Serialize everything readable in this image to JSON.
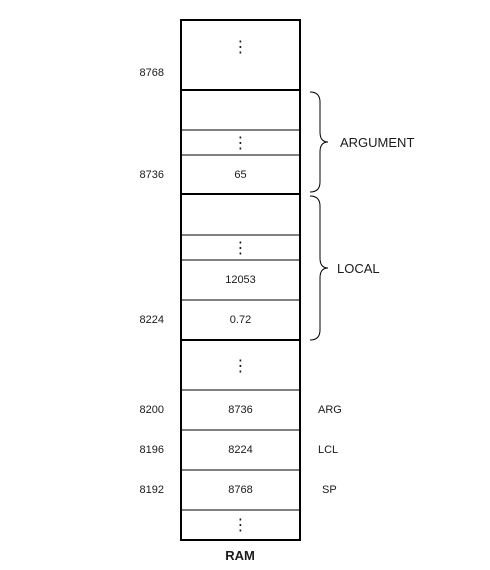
{
  "diagram": {
    "title": "RAM",
    "ellipsis": "⋮",
    "cells": {
      "local_first": "0.72",
      "local_second": "12053",
      "argument_first": "65",
      "arg_value": "8736",
      "lcl_value": "8224",
      "sp_value": "8768"
    },
    "addresses": {
      "a8768": "8768",
      "a8736": "8736",
      "a8224": "8224",
      "a8200": "8200",
      "a8196": "8196",
      "a8192": "8192"
    },
    "registers": {
      "arg": "ARG",
      "lcl": "LCL",
      "sp": "SP"
    },
    "segments": {
      "argument": "ARGUMENT",
      "local": "LOCAL"
    },
    "colors": {
      "line": "#000000",
      "text": "#1a1a1a"
    }
  }
}
